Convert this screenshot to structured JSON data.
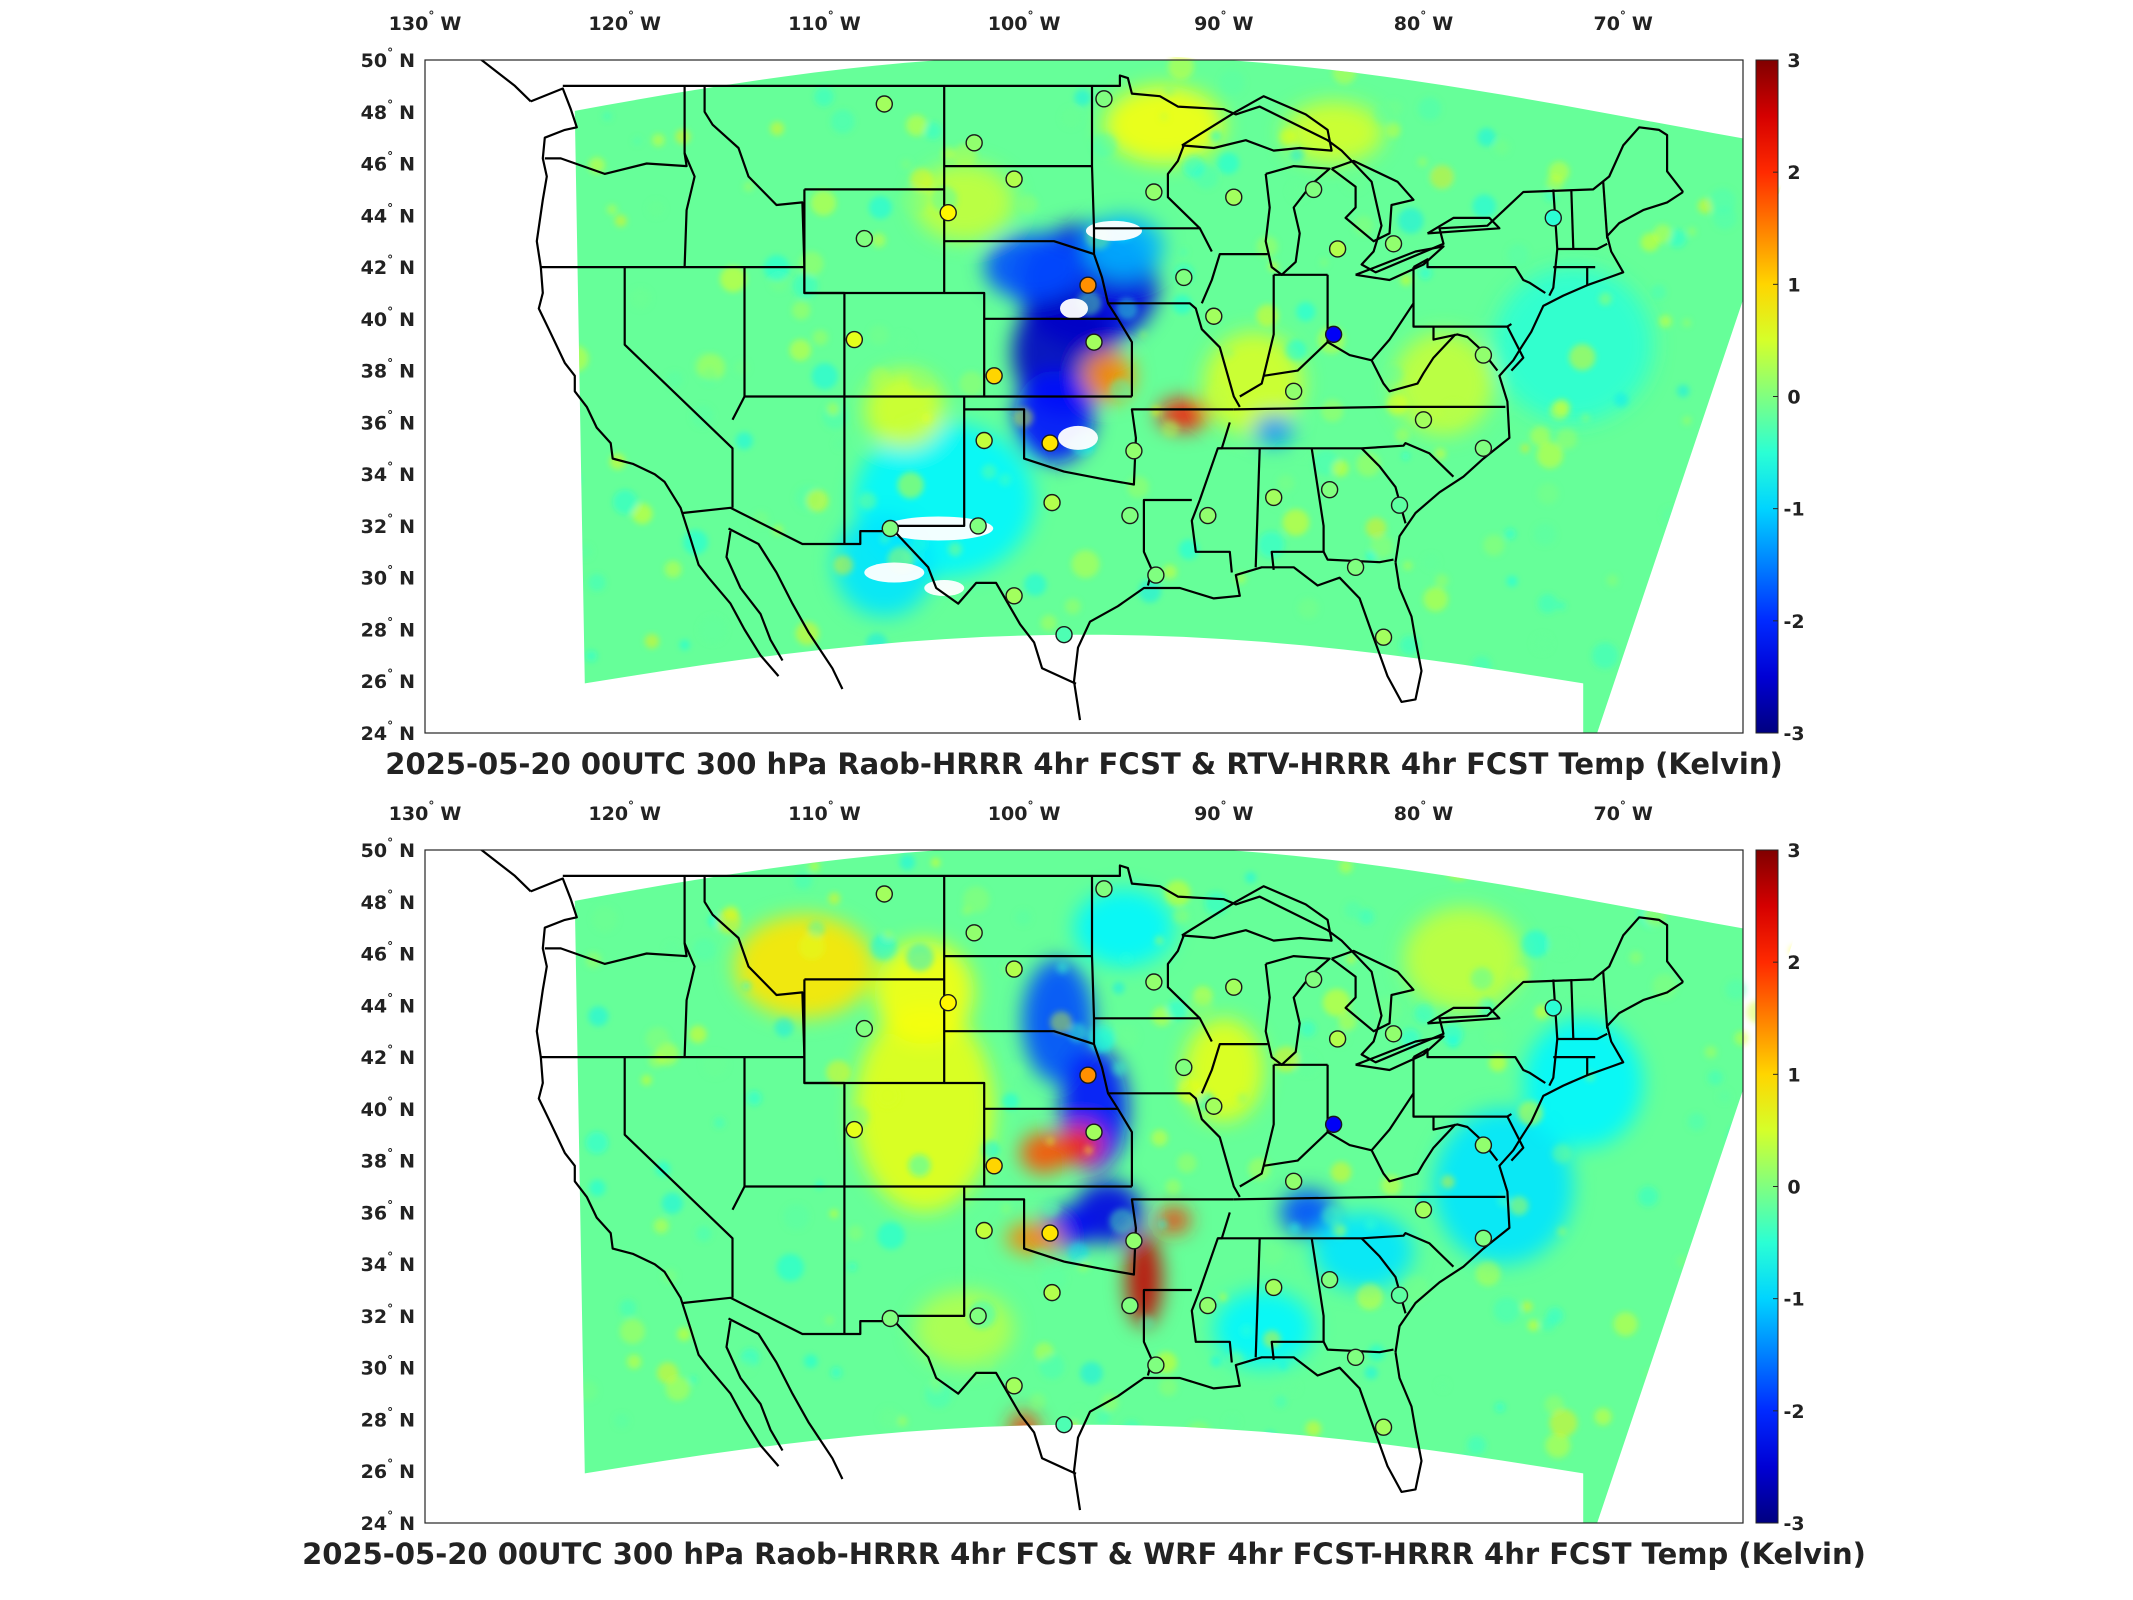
{
  "panels": [
    {
      "id": "top",
      "title": "2025-05-20 00UTC 300 hPa Raob-HRRR 4hr FCST & RTV-HRRR 4hr FCST Temp (Kelvin)",
      "stations": [
        {
          "lon": -107,
          "lat": 48.3,
          "v": 0.2
        },
        {
          "lon": -102.5,
          "lat": 46.8,
          "v": 0.1
        },
        {
          "lon": -100.5,
          "lat": 45.4,
          "v": 0.3
        },
        {
          "lon": -96,
          "lat": 48.5,
          "v": 0.0
        },
        {
          "lon": -93.5,
          "lat": 44.9,
          "v": 0.1
        },
        {
          "lon": -89.5,
          "lat": 44.7,
          "v": 0.2
        },
        {
          "lon": -85.5,
          "lat": 45.0,
          "v": 0.0
        },
        {
          "lon": -84.3,
          "lat": 42.7,
          "v": 0.3
        },
        {
          "lon": -81.5,
          "lat": 42.9,
          "v": 0.1
        },
        {
          "lon": -73.5,
          "lat": 43.9,
          "v": -0.5
        },
        {
          "lon": -108,
          "lat": 43.1,
          "v": 0.0
        },
        {
          "lon": -103.8,
          "lat": 44.1,
          "v": 0.8
        },
        {
          "lon": -96.8,
          "lat": 41.3,
          "v": 1.4
        },
        {
          "lon": -92,
          "lat": 41.6,
          "v": 0.0
        },
        {
          "lon": -90.5,
          "lat": 40.1,
          "v": 0.2
        },
        {
          "lon": -84.5,
          "lat": 39.4,
          "v": -2.3
        },
        {
          "lon": -108.5,
          "lat": 39.2,
          "v": 0.6
        },
        {
          "lon": -101.5,
          "lat": 37.8,
          "v": 1.0
        },
        {
          "lon": -96.5,
          "lat": 39.1,
          "v": 0.2
        },
        {
          "lon": -86.5,
          "lat": 37.2,
          "v": 0.1
        },
        {
          "lon": -102,
          "lat": 35.3,
          "v": 0.4
        },
        {
          "lon": -98.7,
          "lat": 35.2,
          "v": 0.9
        },
        {
          "lon": -94.5,
          "lat": 34.9,
          "v": 0.1
        },
        {
          "lon": -77,
          "lat": 35.0,
          "v": 0.0
        },
        {
          "lon": -80,
          "lat": 36.1,
          "v": 0.2
        },
        {
          "lon": -87.5,
          "lat": 33.1,
          "v": 0.2
        },
        {
          "lon": -84.7,
          "lat": 33.4,
          "v": 0.0
        },
        {
          "lon": -81.2,
          "lat": 32.8,
          "v": -0.2
        },
        {
          "lon": -98.6,
          "lat": 32.9,
          "v": 0.3
        },
        {
          "lon": -94.7,
          "lat": 32.4,
          "v": 0.0
        },
        {
          "lon": -90.8,
          "lat": 32.4,
          "v": 0.1
        },
        {
          "lon": -106.7,
          "lat": 31.9,
          "v": 0.0
        },
        {
          "lon": -102.3,
          "lat": 32.0,
          "v": 0.0
        },
        {
          "lon": -100.5,
          "lat": 29.3,
          "v": 0.2
        },
        {
          "lon": -93.4,
          "lat": 30.1,
          "v": 0.0
        },
        {
          "lon": -83.4,
          "lat": 30.4,
          "v": 0.0
        },
        {
          "lon": -98.0,
          "lat": 27.8,
          "v": -0.3
        },
        {
          "lon": -82.0,
          "lat": 27.7,
          "v": 0.2
        },
        {
          "lon": -77.0,
          "lat": 38.6,
          "v": 0.1
        }
      ]
    },
    {
      "id": "bottom",
      "title": "2025-05-20 00UTC 300 hPa Raob-HRRR 4hr FCST & WRF 4hr FCST-HRRR 4hr FCST Temp (Kelvin)",
      "stations": [
        {
          "lon": -107,
          "lat": 48.3,
          "v": 0.2
        },
        {
          "lon": -102.5,
          "lat": 46.8,
          "v": 0.1
        },
        {
          "lon": -100.5,
          "lat": 45.4,
          "v": 0.3
        },
        {
          "lon": -96,
          "lat": 48.5,
          "v": 0.0
        },
        {
          "lon": -93.5,
          "lat": 44.9,
          "v": 0.1
        },
        {
          "lon": -89.5,
          "lat": 44.7,
          "v": 0.2
        },
        {
          "lon": -85.5,
          "lat": 45.0,
          "v": 0.0
        },
        {
          "lon": -84.3,
          "lat": 42.7,
          "v": 0.3
        },
        {
          "lon": -81.5,
          "lat": 42.9,
          "v": 0.1
        },
        {
          "lon": -73.5,
          "lat": 43.9,
          "v": -0.5
        },
        {
          "lon": -108,
          "lat": 43.1,
          "v": 0.0
        },
        {
          "lon": -103.8,
          "lat": 44.1,
          "v": 0.8
        },
        {
          "lon": -96.8,
          "lat": 41.3,
          "v": 1.4
        },
        {
          "lon": -92,
          "lat": 41.6,
          "v": 0.0
        },
        {
          "lon": -90.5,
          "lat": 40.1,
          "v": 0.2
        },
        {
          "lon": -84.5,
          "lat": 39.4,
          "v": -2.3
        },
        {
          "lon": -108.5,
          "lat": 39.2,
          "v": 0.6
        },
        {
          "lon": -101.5,
          "lat": 37.8,
          "v": 1.0
        },
        {
          "lon": -96.5,
          "lat": 39.1,
          "v": 0.2
        },
        {
          "lon": -86.5,
          "lat": 37.2,
          "v": 0.1
        },
        {
          "lon": -102,
          "lat": 35.3,
          "v": 0.4
        },
        {
          "lon": -98.7,
          "lat": 35.2,
          "v": 0.9
        },
        {
          "lon": -94.5,
          "lat": 34.9,
          "v": 0.1
        },
        {
          "lon": -77,
          "lat": 35.0,
          "v": 0.0
        },
        {
          "lon": -80,
          "lat": 36.1,
          "v": 0.2
        },
        {
          "lon": -87.5,
          "lat": 33.1,
          "v": 0.2
        },
        {
          "lon": -84.7,
          "lat": 33.4,
          "v": 0.0
        },
        {
          "lon": -81.2,
          "lat": 32.8,
          "v": -0.2
        },
        {
          "lon": -98.6,
          "lat": 32.9,
          "v": 0.3
        },
        {
          "lon": -94.7,
          "lat": 32.4,
          "v": 0.0
        },
        {
          "lon": -90.8,
          "lat": 32.4,
          "v": 0.1
        },
        {
          "lon": -106.7,
          "lat": 31.9,
          "v": 0.0
        },
        {
          "lon": -102.3,
          "lat": 32.0,
          "v": 0.0
        },
        {
          "lon": -100.5,
          "lat": 29.3,
          "v": 0.2
        },
        {
          "lon": -93.4,
          "lat": 30.1,
          "v": 0.0
        },
        {
          "lon": -83.4,
          "lat": 30.4,
          "v": 0.0
        },
        {
          "lon": -98.0,
          "lat": 27.8,
          "v": -0.3
        },
        {
          "lon": -82.0,
          "lat": 27.7,
          "v": 0.2
        },
        {
          "lon": -77.0,
          "lat": 38.6,
          "v": 0.1
        }
      ]
    }
  ],
  "lon_ticks": [
    {
      "value": -130,
      "deg": "130",
      "hemi": "W"
    },
    {
      "value": -120,
      "deg": "120",
      "hemi": "W"
    },
    {
      "value": -110,
      "deg": "110",
      "hemi": "W"
    },
    {
      "value": -100,
      "deg": "100",
      "hemi": "W"
    },
    {
      "value": -90,
      "deg": "90",
      "hemi": "W"
    },
    {
      "value": -80,
      "deg": "80",
      "hemi": "W"
    },
    {
      "value": -70,
      "deg": "70",
      "hemi": "W"
    }
  ],
  "lat_ticks": [
    {
      "value": 50,
      "deg": "50",
      "hemi": "N"
    },
    {
      "value": 48,
      "deg": "48",
      "hemi": "N"
    },
    {
      "value": 46,
      "deg": "46",
      "hemi": "N"
    },
    {
      "value": 44,
      "deg": "44",
      "hemi": "N"
    },
    {
      "value": 42,
      "deg": "42",
      "hemi": "N"
    },
    {
      "value": 40,
      "deg": "40",
      "hemi": "N"
    },
    {
      "value": 38,
      "deg": "38",
      "hemi": "N"
    },
    {
      "value": 36,
      "deg": "36",
      "hemi": "N"
    },
    {
      "value": 34,
      "deg": "34",
      "hemi": "N"
    },
    {
      "value": 32,
      "deg": "32",
      "hemi": "N"
    },
    {
      "value": 30,
      "deg": "30",
      "hemi": "N"
    },
    {
      "value": 28,
      "deg": "28",
      "hemi": "N"
    },
    {
      "value": 26,
      "deg": "26",
      "hemi": "N"
    },
    {
      "value": 24,
      "deg": "24",
      "hemi": "N"
    }
  ],
  "colorbar": {
    "ticks": [
      "3",
      "2",
      "1",
      "0",
      "-1",
      "-2",
      "-3"
    ],
    "colormap": "jet",
    "range": [
      -3,
      3
    ]
  },
  "map_extent": {
    "lon": [
      -130,
      -64
    ],
    "lat": [
      24,
      50
    ]
  },
  "colors": {
    "boundary": "#000000",
    "station_outline": "#1a1a1a"
  }
}
